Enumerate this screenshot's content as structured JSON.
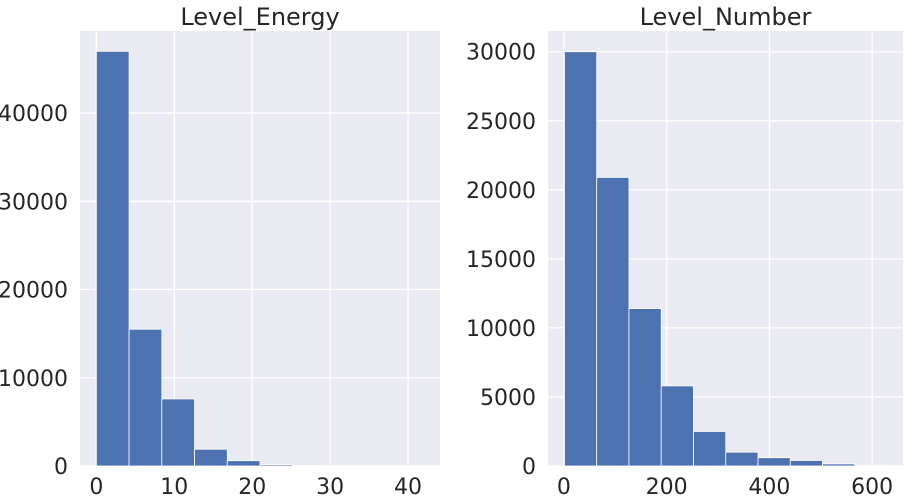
{
  "chart_data": [
    {
      "type": "bar",
      "title": "Level_Energy",
      "xlim": [
        -2.1,
        44.1
      ],
      "ylim": [
        0,
        49300
      ],
      "xticks": [
        0,
        10,
        20,
        30,
        40
      ],
      "xtick_labels": [
        "0",
        "10",
        "20",
        "30",
        "40"
      ],
      "yticks": [
        0,
        10000,
        20000,
        30000,
        40000
      ],
      "ytick_labels": [
        "0",
        "10000",
        "20000",
        "30000",
        "40000"
      ],
      "bin_edges": [
        0,
        4.2,
        8.4,
        12.6,
        16.8,
        21.0,
        25.2,
        29.4,
        33.6,
        37.8,
        42.0
      ],
      "values": [
        47000,
        15500,
        7600,
        1900,
        600,
        150,
        50,
        20,
        10,
        5
      ],
      "grid": true,
      "bar_color": "#4c72b0",
      "background_color": "#eaeaf2"
    },
    {
      "type": "bar",
      "title": "Level_Number",
      "xlim": [
        -31,
        660
      ],
      "ylim": [
        0,
        31500
      ],
      "xticks": [
        0,
        200,
        400,
        600
      ],
      "xtick_labels": [
        "0",
        "200",
        "400",
        "600"
      ],
      "yticks": [
        0,
        5000,
        10000,
        15000,
        20000,
        25000,
        30000
      ],
      "ytick_labels": [
        "0",
        "5000",
        "10000",
        "15000",
        "20000",
        "25000",
        "30000"
      ],
      "bin_edges": [
        1,
        63.8,
        126.6,
        189.4,
        252.2,
        315.0,
        377.8,
        440.6,
        503.4,
        566.2,
        629.0
      ],
      "values": [
        30000,
        20900,
        11400,
        5800,
        2500,
        1000,
        600,
        400,
        150,
        60
      ],
      "grid": true,
      "bar_color": "#4c72b0",
      "background_color": "#eaeaf2"
    }
  ]
}
